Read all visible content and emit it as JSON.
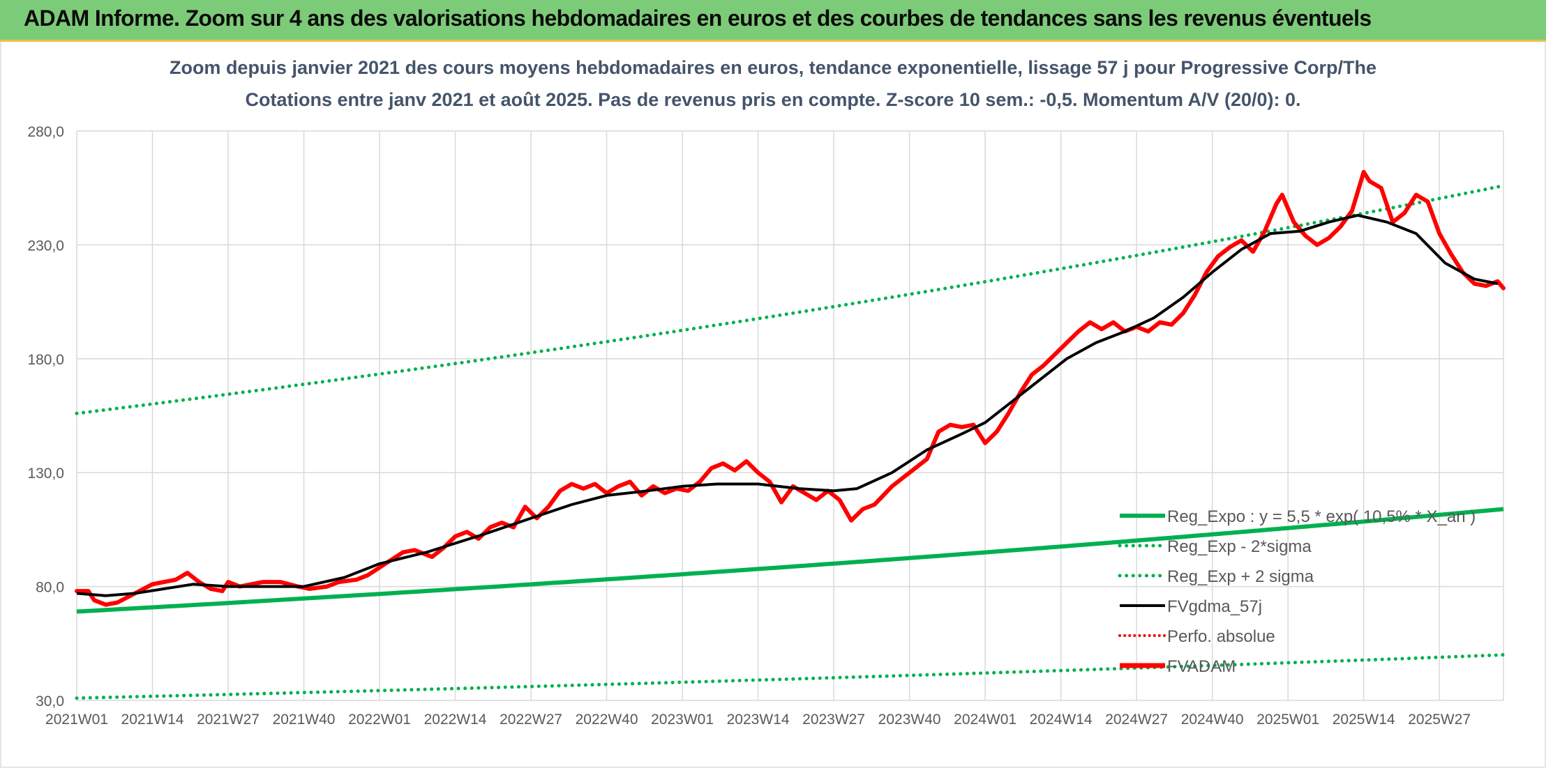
{
  "header": {
    "title": "ADAM Informe. Zoom sur 4 ans des valorisations hebdomadaires en euros et des courbes de tendances sans les revenus éventuels"
  },
  "chart_data": {
    "type": "line",
    "title_line1": "Zoom depuis janvier 2021 des cours moyens hebdomadaires en euros, tendance exponentielle, lissage 57 j pour Progressive Corp/The",
    "title_line2": "Cotations entre janv 2021 et août 2025. Pas de revenus pris en compte. Z-score 10 sem.: -0,5. Momentum A/V (20/0): 0.",
    "ylim": [
      30,
      280
    ],
    "y_ticks": [
      "280,0",
      "230,0",
      "180,0",
      "130,0",
      "80,0",
      "30,0"
    ],
    "y_tick_values": [
      280,
      230,
      180,
      130,
      80,
      30
    ],
    "x_tick_labels": [
      "2021W01",
      "2021W14",
      "2021W27",
      "2021W40",
      "2022W01",
      "2022W14",
      "2022W27",
      "2022W40",
      "2023W01",
      "2023W14",
      "2023W27",
      "2023W40",
      "2024W01",
      "2024W14",
      "2024W27",
      "2024W40",
      "2025W01",
      "2025W14",
      "2025W27"
    ],
    "x_tick_week_index": [
      0,
      13,
      26,
      39,
      52,
      65,
      78,
      91,
      104,
      117,
      130,
      143,
      156,
      169,
      182,
      195,
      208,
      221,
      234
    ],
    "grid": true,
    "legend_position": "bottom-right",
    "colors": {
      "reg_expo": "#00b050",
      "reg_bands": "#00b050",
      "fvgdma": "#000000",
      "perfo": "#ff0000",
      "fvadam": "#ff0000",
      "grid": "#d9d9d9",
      "axis_text": "#595959"
    },
    "series": [
      {
        "name": "Reg_Expo : y = 5,5 * exp( 10,5% * X_an )",
        "style": "solid-thick",
        "start": 69,
        "end": 114
      },
      {
        "name": "Reg_Exp - 2*sigma",
        "style": "dotted",
        "start": 31,
        "end": 50
      },
      {
        "name": "Reg_Exp + 2 sigma",
        "style": "dotted",
        "start": 156,
        "end": 256
      },
      {
        "name": "FVgdma_57j",
        "style": "solid",
        "points": [
          [
            0,
            77
          ],
          [
            5,
            76
          ],
          [
            10,
            77
          ],
          [
            15,
            79
          ],
          [
            20,
            81
          ],
          [
            26,
            80
          ],
          [
            32,
            80
          ],
          [
            39,
            80
          ],
          [
            46,
            84
          ],
          [
            52,
            90
          ],
          [
            60,
            95
          ],
          [
            65,
            99
          ],
          [
            70,
            103
          ],
          [
            78,
            110
          ],
          [
            85,
            116
          ],
          [
            91,
            120
          ],
          [
            98,
            122
          ],
          [
            104,
            124
          ],
          [
            110,
            125
          ],
          [
            117,
            125
          ],
          [
            124,
            123
          ],
          [
            130,
            122
          ],
          [
            134,
            123
          ],
          [
            140,
            130
          ],
          [
            146,
            140
          ],
          [
            152,
            147
          ],
          [
            156,
            152
          ],
          [
            160,
            160
          ],
          [
            165,
            170
          ],
          [
            170,
            180
          ],
          [
            175,
            187
          ],
          [
            180,
            192
          ],
          [
            185,
            198
          ],
          [
            190,
            207
          ],
          [
            195,
            218
          ],
          [
            200,
            228
          ],
          [
            205,
            235
          ],
          [
            210,
            236
          ],
          [
            215,
            240
          ],
          [
            220,
            243
          ],
          [
            225,
            240
          ],
          [
            230,
            235
          ],
          [
            235,
            222
          ],
          [
            240,
            215
          ],
          [
            244,
            213
          ]
        ]
      },
      {
        "name": "Perfo. absolue",
        "style": "dotted",
        "points": []
      },
      {
        "name": "FVADAM",
        "style": "solid-thick",
        "points": [
          [
            0,
            78
          ],
          [
            2,
            78
          ],
          [
            3,
            74
          ],
          [
            5,
            72
          ],
          [
            7,
            73
          ],
          [
            10,
            77
          ],
          [
            13,
            81
          ],
          [
            17,
            83
          ],
          [
            19,
            86
          ],
          [
            21,
            82
          ],
          [
            23,
            79
          ],
          [
            25,
            78
          ],
          [
            26,
            82
          ],
          [
            28,
            80
          ],
          [
            30,
            81
          ],
          [
            32,
            82
          ],
          [
            35,
            82
          ],
          [
            38,
            80
          ],
          [
            40,
            79
          ],
          [
            43,
            80
          ],
          [
            45,
            82
          ],
          [
            48,
            83
          ],
          [
            50,
            85
          ],
          [
            53,
            90
          ],
          [
            56,
            95
          ],
          [
            58,
            96
          ],
          [
            61,
            93
          ],
          [
            63,
            97
          ],
          [
            65,
            102
          ],
          [
            67,
            104
          ],
          [
            69,
            101
          ],
          [
            71,
            106
          ],
          [
            73,
            108
          ],
          [
            75,
            106
          ],
          [
            77,
            115
          ],
          [
            79,
            110
          ],
          [
            81,
            115
          ],
          [
            83,
            122
          ],
          [
            85,
            125
          ],
          [
            87,
            123
          ],
          [
            89,
            125
          ],
          [
            91,
            121
          ],
          [
            93,
            124
          ],
          [
            95,
            126
          ],
          [
            97,
            120
          ],
          [
            99,
            124
          ],
          [
            101,
            121
          ],
          [
            103,
            123
          ],
          [
            105,
            122
          ],
          [
            107,
            126
          ],
          [
            109,
            132
          ],
          [
            111,
            134
          ],
          [
            113,
            131
          ],
          [
            115,
            135
          ],
          [
            117,
            130
          ],
          [
            119,
            126
          ],
          [
            121,
            117
          ],
          [
            123,
            124
          ],
          [
            125,
            121
          ],
          [
            127,
            118
          ],
          [
            129,
            122
          ],
          [
            131,
            118
          ],
          [
            133,
            109
          ],
          [
            135,
            114
          ],
          [
            137,
            116
          ],
          [
            140,
            124
          ],
          [
            142,
            128
          ],
          [
            144,
            132
          ],
          [
            146,
            136
          ],
          [
            148,
            148
          ],
          [
            150,
            151
          ],
          [
            152,
            150
          ],
          [
            154,
            151
          ],
          [
            156,
            143
          ],
          [
            158,
            148
          ],
          [
            160,
            156
          ],
          [
            162,
            165
          ],
          [
            164,
            173
          ],
          [
            166,
            177
          ],
          [
            168,
            182
          ],
          [
            170,
            187
          ],
          [
            172,
            192
          ],
          [
            174,
            196
          ],
          [
            176,
            193
          ],
          [
            178,
            196
          ],
          [
            180,
            192
          ],
          [
            182,
            194
          ],
          [
            184,
            192
          ],
          [
            186,
            196
          ],
          [
            188,
            195
          ],
          [
            190,
            200
          ],
          [
            192,
            208
          ],
          [
            194,
            218
          ],
          [
            196,
            225
          ],
          [
            198,
            229
          ],
          [
            200,
            232
          ],
          [
            202,
            227
          ],
          [
            204,
            236
          ],
          [
            206,
            248
          ],
          [
            207,
            252
          ],
          [
            209,
            240
          ],
          [
            211,
            234
          ],
          [
            213,
            230
          ],
          [
            215,
            233
          ],
          [
            217,
            238
          ],
          [
            219,
            245
          ],
          [
            221,
            262
          ],
          [
            222,
            258
          ],
          [
            224,
            255
          ],
          [
            226,
            240
          ],
          [
            228,
            244
          ],
          [
            230,
            252
          ],
          [
            232,
            249
          ],
          [
            234,
            235
          ],
          [
            236,
            226
          ],
          [
            238,
            218
          ],
          [
            240,
            213
          ],
          [
            242,
            212
          ],
          [
            244,
            214
          ],
          [
            245,
            211
          ]
        ]
      }
    ]
  }
}
